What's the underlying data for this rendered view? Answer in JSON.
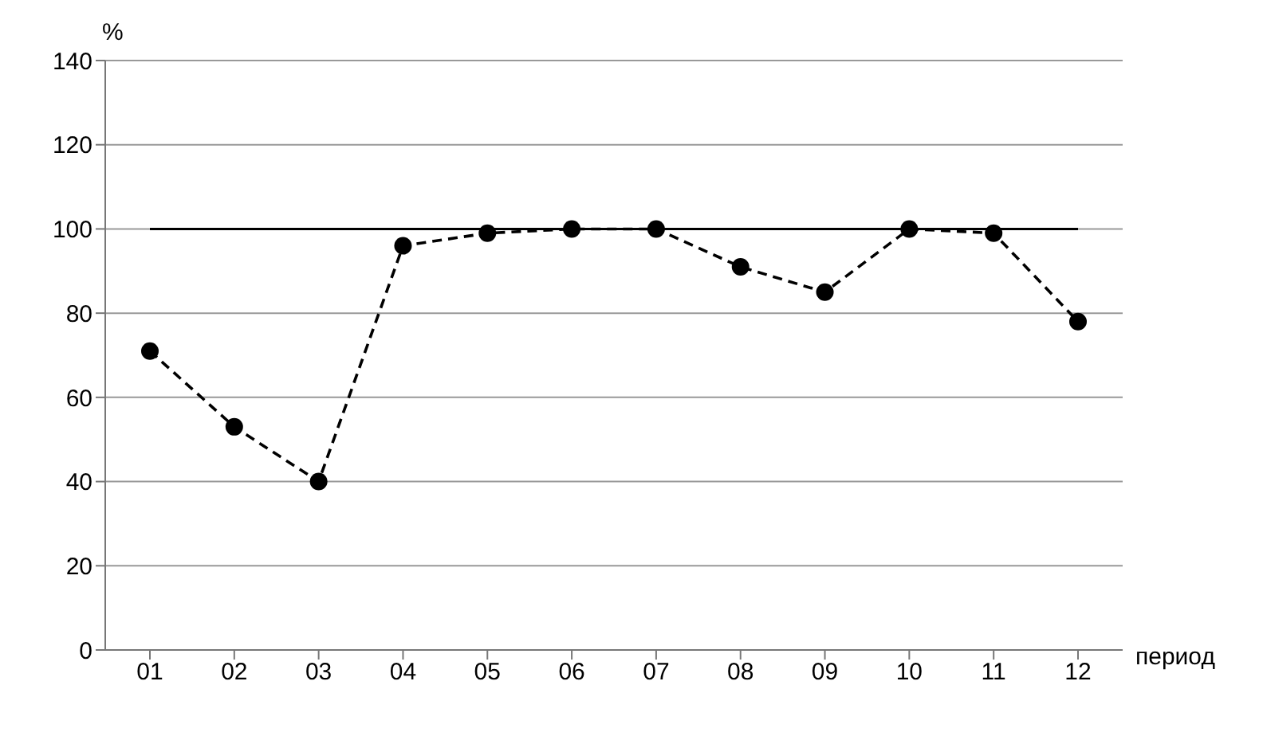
{
  "chart_data": {
    "type": "line",
    "ylabel": "%",
    "xlabel": "период",
    "categories": [
      "01",
      "02",
      "03",
      "04",
      "05",
      "06",
      "07",
      "08",
      "09",
      "10",
      "11",
      "12"
    ],
    "series": [
      {
        "color": "#000000",
        "values": [
          71,
          53,
          40,
          96,
          99,
          100,
          100,
          91,
          85,
          100,
          99,
          78
        ]
      }
    ],
    "ylim": [
      0,
      140
    ],
    "yticks": [
      0,
      20,
      40,
      60,
      80,
      100,
      120,
      140
    ],
    "grid": "y",
    "legend": false,
    "marker": "circle",
    "line_style": "dashed",
    "ref_lines": [
      {
        "axis": "y",
        "value": 100,
        "color": "#000000",
        "line_style": "solid"
      }
    ]
  }
}
